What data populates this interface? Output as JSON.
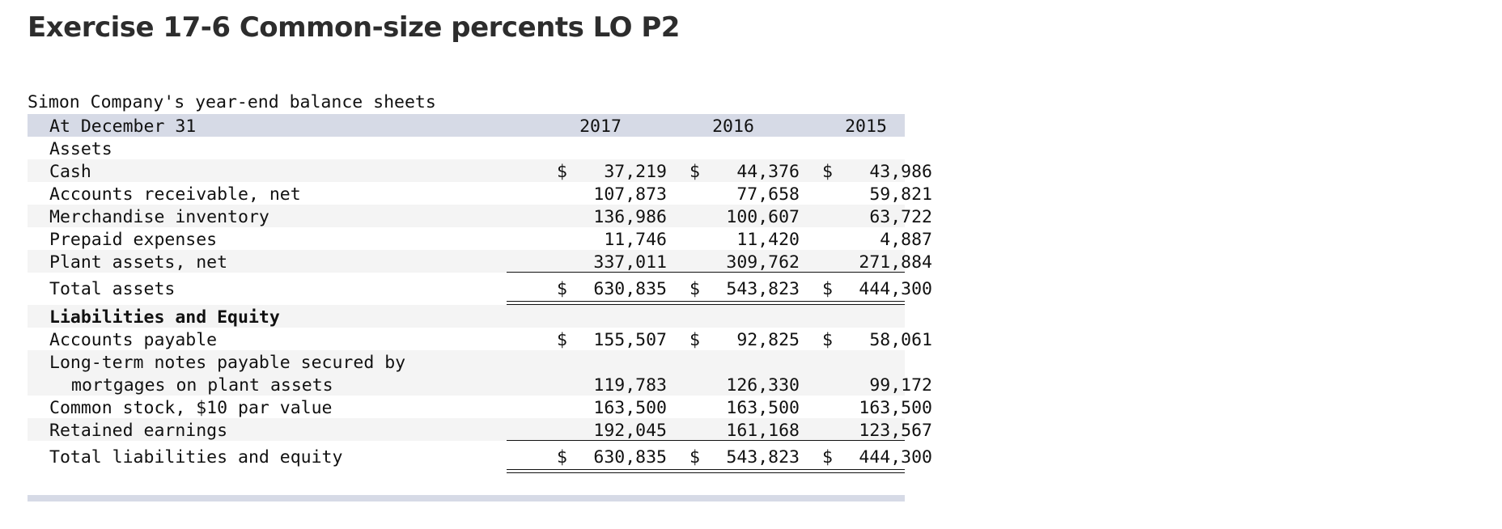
{
  "title": "Exercise 17-6 Common-size percents LO P2",
  "caption": "Simon Company's year-end balance sheets",
  "header": {
    "label": "At December 31",
    "years": [
      "2017",
      "2016",
      "2015"
    ]
  },
  "currency_symbol": "$",
  "assets_heading": "Assets",
  "assets": [
    {
      "label": "Cash",
      "values": [
        "37,219",
        "44,376",
        "43,986"
      ],
      "dollar": true
    },
    {
      "label": "Accounts receivable, net",
      "values": [
        "107,873",
        "77,658",
        "59,821"
      ]
    },
    {
      "label": "Merchandise inventory",
      "values": [
        "136,986",
        "100,607",
        "63,722"
      ]
    },
    {
      "label": "Prepaid expenses",
      "values": [
        "11,746",
        "11,420",
        "4,887"
      ]
    },
    {
      "label": "Plant assets, net",
      "values": [
        "337,011",
        "309,762",
        "271,884"
      ]
    }
  ],
  "total_assets": {
    "label": "Total assets",
    "values": [
      "630,835",
      "543,823",
      "444,300"
    ]
  },
  "liabilities_heading": "Liabilities and Equity",
  "liabilities": [
    {
      "label": "Accounts payable",
      "values": [
        "155,507",
        "92,825",
        "58,061"
      ],
      "dollar": true
    },
    {
      "label": "Long-term notes payable secured by",
      "label_cont": "mortgages on plant assets",
      "values": [
        "119,783",
        "126,330",
        "99,172"
      ]
    },
    {
      "label": "Common stock, $10 par value",
      "values": [
        "163,500",
        "163,500",
        "163,500"
      ]
    },
    {
      "label": "Retained earnings",
      "values": [
        "192,045",
        "161,168",
        "123,567"
      ]
    }
  ],
  "total_liabilities": {
    "label": "Total liabilities and equity",
    "values": [
      "630,835",
      "543,823",
      "444,300"
    ]
  }
}
